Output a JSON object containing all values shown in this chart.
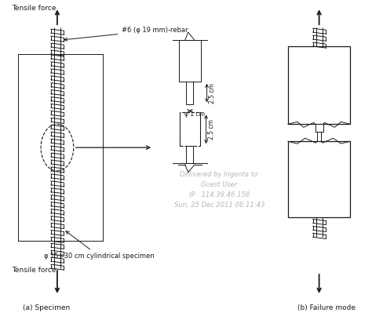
{
  "bg_color": "#ffffff",
  "line_color": "#1a1a1a",
  "watermark_color": "#b8b8b8",
  "title_a": "(a) Specimen",
  "title_b": "(b) Failure mode",
  "label_tensile_top": "Tensile force",
  "label_tensile_bot": "Tensile force",
  "label_rebar": "#6 (φ 19 mm)-rebar",
  "label_phi1cm": "φ 1 cm",
  "label_25cm_top": "2.5 cm",
  "label_25cm_bot": "2.5 cm",
  "label_specimen": "φ 15×30 cm cylindrical specimen",
  "watermark_lines": [
    "Delivered by Ingenta to:",
    "Guest User",
    "IP : 114.39.46.158",
    "Sun, 25 Dec 2011 06:11:43"
  ],
  "figsize": [
    4.74,
    4.08
  ],
  "dpi": 100
}
